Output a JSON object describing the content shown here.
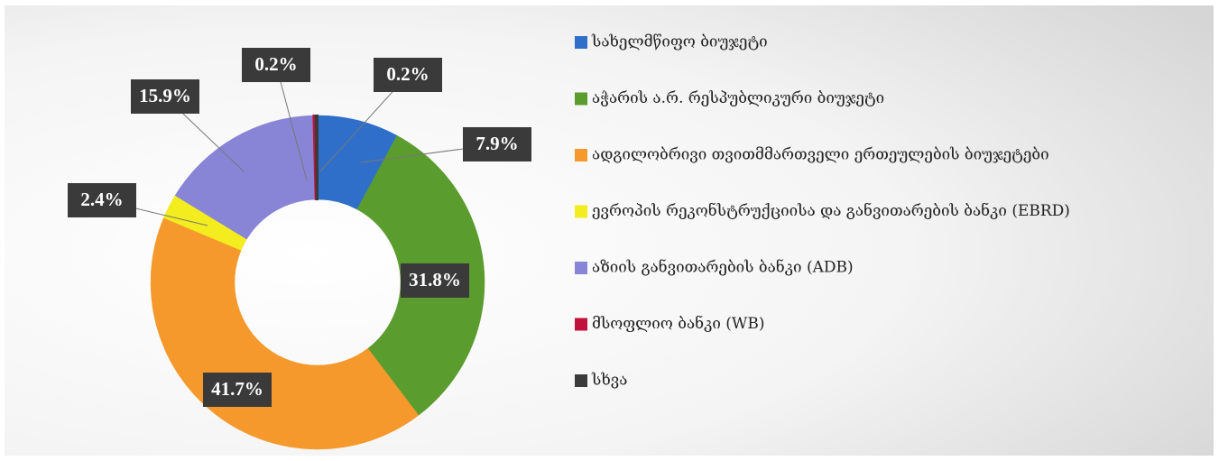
{
  "chart_data": {
    "type": "donut",
    "categories": [
      "სახელმწიფო ბიუჯეტი",
      "აჭარის ა.რ. რესპუბლიკური ბიუჯეტი",
      "ადგილობრივი თვითმმართველი ერთეულების ბიუჯეტები",
      "ევროპის რეკონსტრუქციისა და განვითარების ბანკი (EBRD)",
      "აზიის განვითარების ბანკი (ADB)",
      "მსოფლიო ბანკი  (WB)",
      "სხვა"
    ],
    "values": [
      7.9,
      31.8,
      41.7,
      2.4,
      15.9,
      0.2,
      0.2
    ],
    "value_labels": [
      "7.9%",
      "31.8%",
      "41.7%",
      "2.4%",
      "15.9%",
      "0.2%",
      "0.2%"
    ],
    "colors": [
      "#2f6fc9",
      "#5b9c2f",
      "#f5992c",
      "#f3ec1e",
      "#8884d6",
      "#c0123c",
      "#3b3b3b"
    ],
    "legend": "right"
  }
}
